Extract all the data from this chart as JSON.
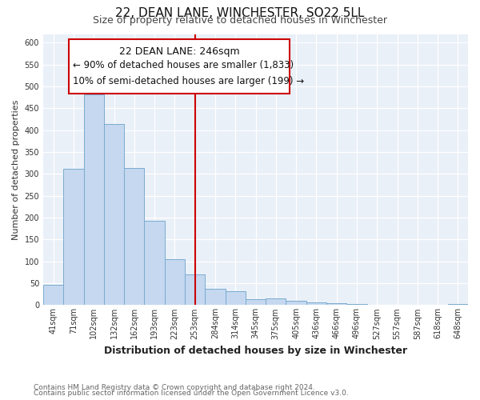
{
  "title": "22, DEAN LANE, WINCHESTER, SO22 5LL",
  "subtitle": "Size of property relative to detached houses in Winchester",
  "xlabel": "Distribution of detached houses by size in Winchester",
  "ylabel": "Number of detached properties",
  "footnote1": "Contains HM Land Registry data © Crown copyright and database right 2024.",
  "footnote2": "Contains public sector information licensed under the Open Government Licence v3.0.",
  "bar_labels": [
    "41sqm",
    "71sqm",
    "102sqm",
    "132sqm",
    "162sqm",
    "193sqm",
    "223sqm",
    "253sqm",
    "284sqm",
    "314sqm",
    "345sqm",
    "375sqm",
    "405sqm",
    "436sqm",
    "466sqm",
    "496sqm",
    "527sqm",
    "557sqm",
    "587sqm",
    "618sqm",
    "648sqm"
  ],
  "bar_values": [
    46,
    311,
    481,
    415,
    314,
    193,
    105,
    70,
    37,
    31,
    14,
    15,
    10,
    7,
    4,
    2,
    0,
    0,
    0,
    0,
    2
  ],
  "bar_color": "#c5d8f0",
  "bar_edge_color": "#7aabce",
  "vline_x_index": 7,
  "vline_color": "#cc0000",
  "ylim": [
    0,
    620
  ],
  "yticks": [
    0,
    50,
    100,
    150,
    200,
    250,
    300,
    350,
    400,
    450,
    500,
    550,
    600
  ],
  "annotation_title": "22 DEAN LANE: 246sqm",
  "annotation_line1": "← 90% of detached houses are smaller (1,833)",
  "annotation_line2": "10% of semi-detached houses are larger (199) →",
  "annotation_box_color": "#ffffff",
  "annotation_box_edge": "#cc0000",
  "title_fontsize": 11,
  "subtitle_fontsize": 9,
  "xlabel_fontsize": 9,
  "ylabel_fontsize": 8,
  "tick_fontsize": 7,
  "annotation_title_fontsize": 9,
  "annotation_body_fontsize": 8.5,
  "footnote_fontsize": 6.5,
  "bg_color": "#eaf0f8"
}
